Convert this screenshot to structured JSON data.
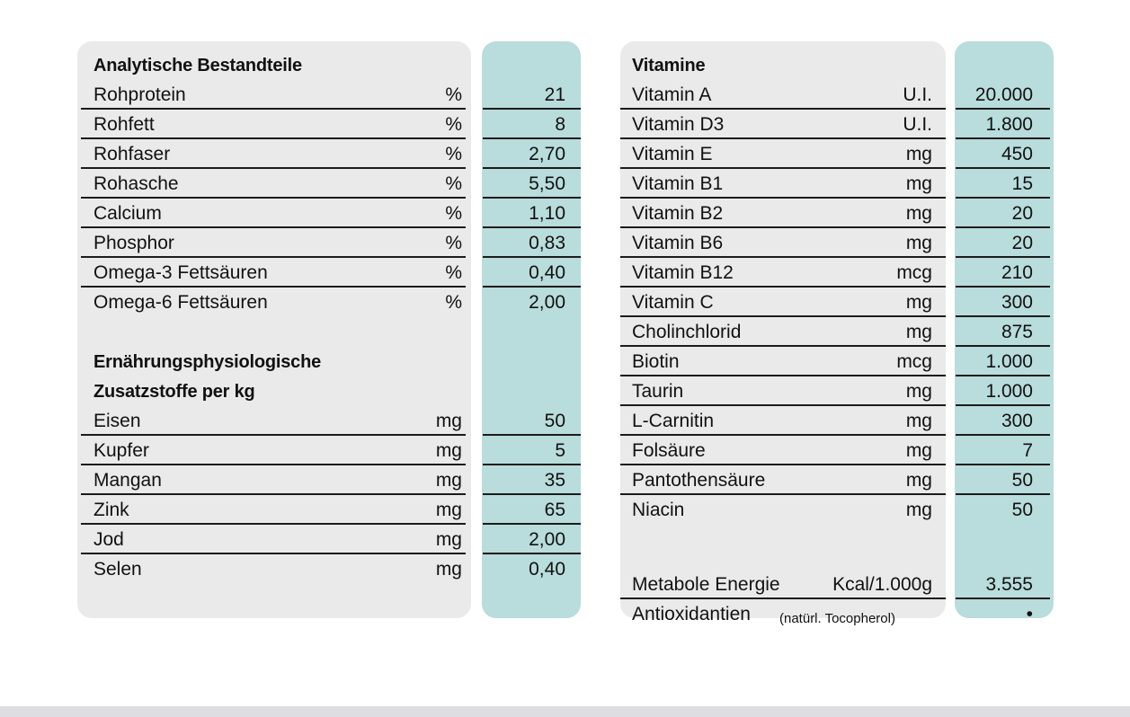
{
  "left_table": {
    "heading_analytic": "Analytische Bestandteile",
    "analytic_rows": [
      {
        "name": "Rohprotein",
        "unit": "%",
        "value": "21"
      },
      {
        "name": "Rohfett",
        "unit": "%",
        "value": "8"
      },
      {
        "name": "Rohfaser",
        "unit": "%",
        "value": "2,70"
      },
      {
        "name": "Rohasche",
        "unit": "%",
        "value": "5,50"
      },
      {
        "name": "Calcium",
        "unit": "%",
        "value": "1,10"
      },
      {
        "name": "Phosphor",
        "unit": "%",
        "value": "0,83"
      },
      {
        "name": "Omega-3 Fettsäuren",
        "unit": "%",
        "value": "0,40"
      },
      {
        "name": "Omega-6 Fettsäuren",
        "unit": "%",
        "value": "2,00"
      }
    ],
    "heading_additives_1": "Ernährungsphysiologische",
    "heading_additives_2": "Zusatzstoffe per kg",
    "additive_rows": [
      {
        "name": "Eisen",
        "unit": "mg",
        "value": "50"
      },
      {
        "name": "Kupfer",
        "unit": "mg",
        "value": "5"
      },
      {
        "name": "Mangan",
        "unit": "mg",
        "value": "35"
      },
      {
        "name": "Zink",
        "unit": "mg",
        "value": "65"
      },
      {
        "name": "Jod",
        "unit": "mg",
        "value": "2,00"
      },
      {
        "name": "Selen",
        "unit": "mg",
        "value": "0,40"
      }
    ]
  },
  "right_table": {
    "heading_vitamins": "Vitamine",
    "vitamin_rows": [
      {
        "name": "Vitamin A",
        "unit": "U.I.",
        "value": "20.000"
      },
      {
        "name": "Vitamin D3",
        "unit": "U.I.",
        "value": "1.800"
      },
      {
        "name": "Vitamin E",
        "unit": "mg",
        "value": "450"
      },
      {
        "name": "Vitamin B1",
        "unit": "mg",
        "value": "15"
      },
      {
        "name": "Vitamin B2",
        "unit": "mg",
        "value": "20"
      },
      {
        "name": "Vitamin B6",
        "unit": "mg",
        "value": "20"
      },
      {
        "name": "Vitamin B12",
        "unit": "mcg",
        "value": "210"
      },
      {
        "name": "Vitamin C",
        "unit": "mg",
        "value": "300"
      },
      {
        "name": "Cholinchlorid",
        "unit": "mg",
        "value": "875"
      },
      {
        "name": "Biotin",
        "unit": "mcg",
        "value": "1.000"
      },
      {
        "name": "Taurin",
        "unit": "mg",
        "value": "1.000"
      },
      {
        "name": "L-Carnitin",
        "unit": "mg",
        "value": "300"
      },
      {
        "name": "Folsäure",
        "unit": "mg",
        "value": "7"
      },
      {
        "name": "Pantothensäure",
        "unit": "mg",
        "value": "50"
      },
      {
        "name": "Niacin",
        "unit": "mg",
        "value": "50"
      }
    ],
    "energy": {
      "name": "Metabole Energie",
      "unit": "Kcal/1.000g",
      "value": "3.555"
    },
    "antioxidants": {
      "name": "Antioxidantien",
      "note": "(natürl. Tocopherol)",
      "value": "•"
    }
  },
  "colors": {
    "panel_grey": "#eaeaea",
    "panel_teal": "#b9dcdc",
    "rule": "#1b1b1b",
    "text": "#111111"
  }
}
